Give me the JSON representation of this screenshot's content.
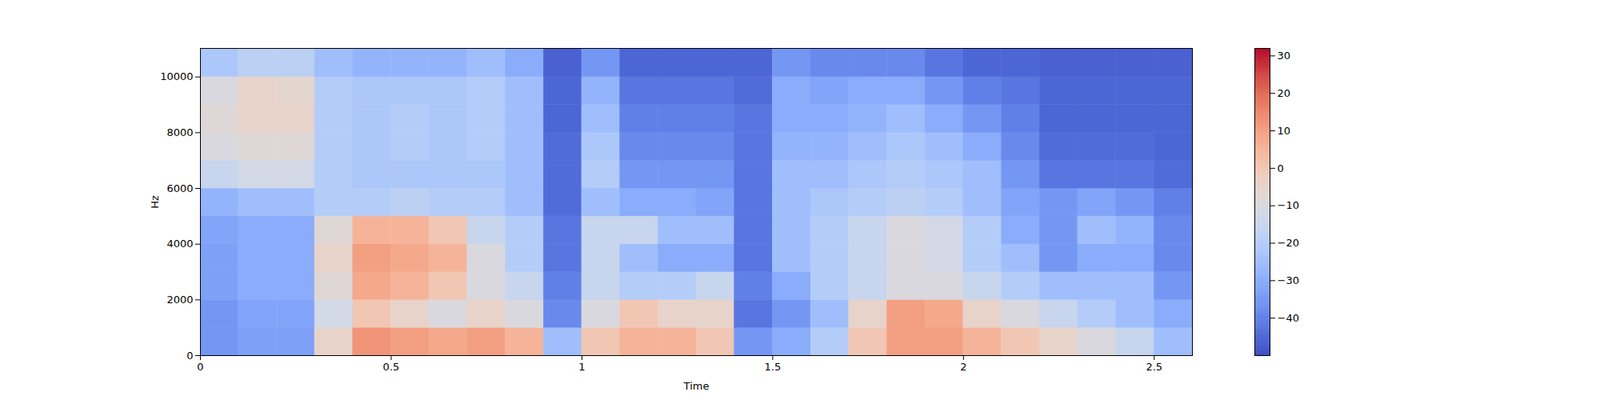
{
  "chart_data": {
    "type": "heatmap",
    "x_label": "Time",
    "y_label": "Hz",
    "xlim": [
      0,
      2.6
    ],
    "ylim": [
      0,
      11025
    ],
    "xticks": [
      0,
      0.5,
      1,
      1.5,
      2,
      2.5
    ],
    "yticks": [
      0,
      2000,
      4000,
      6000,
      8000,
      10000
    ],
    "time_bins": [
      0,
      0.1,
      0.2,
      0.3,
      0.4,
      0.5,
      0.6,
      0.7,
      0.8,
      0.9,
      1.0,
      1.1,
      1.2,
      1.3,
      1.4,
      1.5,
      1.6,
      1.7,
      1.8,
      1.9,
      2.0,
      2.1,
      2.2,
      2.3,
      2.4,
      2.5,
      2.6
    ],
    "freq_bins": [
      0,
      1000,
      2000,
      3000,
      4000,
      5000,
      6000,
      7000,
      8000,
      9000,
      10000,
      11025
    ],
    "cells": [
      [
        -35,
        -33,
        -33,
        -5,
        12,
        10,
        8,
        10,
        5,
        -25,
        0,
        5,
        5,
        0,
        -35,
        -30,
        -20,
        0,
        10,
        10,
        5,
        0,
        -5,
        -10,
        -15,
        -25
      ],
      [
        -35,
        -32,
        -32,
        -12,
        0,
        -5,
        -10,
        -5,
        -10,
        -38,
        -10,
        0,
        -5,
        -5,
        -42,
        -35,
        -25,
        -5,
        10,
        8,
        -5,
        -10,
        -15,
        -20,
        -25,
        -30
      ],
      [
        -33,
        -30,
        -30,
        -8,
        8,
        5,
        0,
        -10,
        -15,
        -40,
        -15,
        -20,
        -20,
        -15,
        -40,
        -30,
        -20,
        -15,
        -10,
        -10,
        -15,
        -20,
        -25,
        -25,
        -25,
        -35
      ],
      [
        -33,
        -30,
        -30,
        -5,
        10,
        8,
        5,
        -10,
        -20,
        -42,
        -15,
        -25,
        -30,
        -30,
        -42,
        -25,
        -20,
        -15,
        -10,
        -12,
        -20,
        -25,
        -35,
        -30,
        -30,
        -38
      ],
      [
        -32,
        -30,
        -30,
        -8,
        5,
        5,
        0,
        -15,
        -20,
        -42,
        -15,
        -15,
        -25,
        -25,
        -42,
        -25,
        -20,
        -15,
        -10,
        -12,
        -20,
        -30,
        -35,
        -25,
        -28,
        -38
      ],
      [
        -28,
        -25,
        -25,
        -20,
        -20,
        -18,
        -20,
        -20,
        -25,
        -44,
        -25,
        -30,
        -30,
        -32,
        -42,
        -25,
        -22,
        -20,
        -18,
        -20,
        -25,
        -32,
        -35,
        -32,
        -35,
        -40
      ],
      [
        -15,
        -12,
        -12,
        -20,
        -22,
        -22,
        -22,
        -22,
        -25,
        -44,
        -20,
        -35,
        -35,
        -35,
        -42,
        -25,
        -25,
        -22,
        -20,
        -22,
        -25,
        -35,
        -42,
        -42,
        -42,
        -44
      ],
      [
        -10,
        -8,
        -8,
        -20,
        -22,
        -20,
        -22,
        -20,
        -25,
        -44,
        -22,
        -38,
        -38,
        -38,
        -42,
        -28,
        -28,
        -25,
        -22,
        -25,
        -30,
        -38,
        -44,
        -44,
        -44,
        -45
      ],
      [
        -8,
        -5,
        -5,
        -20,
        -22,
        -20,
        -22,
        -20,
        -25,
        -45,
        -25,
        -40,
        -40,
        -40,
        -42,
        -30,
        -30,
        -28,
        -25,
        -30,
        -35,
        -40,
        -45,
        -45,
        -45,
        -45
      ],
      [
        -10,
        -5,
        -6,
        -20,
        -22,
        -22,
        -22,
        -20,
        -25,
        -45,
        -28,
        -42,
        -42,
        -42,
        -44,
        -30,
        -32,
        -30,
        -30,
        -35,
        -40,
        -42,
        -45,
        -45,
        -45,
        -45
      ],
      [
        -22,
        -18,
        -18,
        -25,
        -28,
        -28,
        -28,
        -25,
        -30,
        -46,
        -35,
        -45,
        -45,
        -45,
        -45,
        -35,
        -38,
        -38,
        -38,
        -42,
        -45,
        -45,
        -46,
        -46,
        -46,
        -46
      ]
    ],
    "colorbar": {
      "range": [
        -50,
        32
      ],
      "ticks": [
        -40,
        -30,
        -20,
        -10,
        0,
        10,
        20,
        30
      ]
    }
  }
}
